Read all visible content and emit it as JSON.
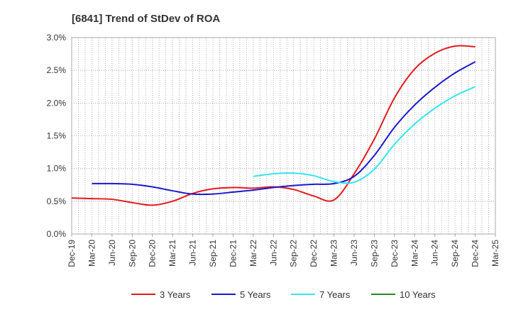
{
  "chart_data": {
    "type": "line",
    "title": "[6841]  Trend of StDev of ROA",
    "xlabel": "",
    "ylabel": "",
    "x_ticks": [
      "Dec-19",
      "Mar-20",
      "Jun-20",
      "Sep-20",
      "Dec-20",
      "Mar-21",
      "Jun-21",
      "Sep-21",
      "Dec-21",
      "Mar-22",
      "Jun-22",
      "Sep-22",
      "Dec-22",
      "Mar-23",
      "Jun-23",
      "Sep-23",
      "Dec-23",
      "Mar-24",
      "Jun-24",
      "Sep-24",
      "Dec-24",
      "Mar-25"
    ],
    "y_ticks": [
      "0.0%",
      "0.5%",
      "1.0%",
      "1.5%",
      "2.0%",
      "2.5%",
      "3.0%"
    ],
    "ylim": [
      0,
      3.0
    ],
    "grid": true,
    "legend_position": "bottom",
    "series": [
      {
        "name": "3 Years",
        "color": "#e31a1c",
        "x": [
          "Dec-19",
          "Mar-20",
          "Jun-20",
          "Sep-20",
          "Dec-20",
          "Mar-21",
          "Jun-21",
          "Sep-21",
          "Dec-21",
          "Mar-22",
          "Jun-22",
          "Sep-22",
          "Dec-22",
          "Mar-23",
          "Jun-23",
          "Sep-23",
          "Dec-23",
          "Mar-24",
          "Jun-24",
          "Sep-24",
          "Dec-24"
        ],
        "values": [
          0.55,
          0.54,
          0.53,
          0.48,
          0.44,
          0.5,
          0.62,
          0.69,
          0.71,
          0.7,
          0.72,
          0.68,
          0.58,
          0.52,
          0.92,
          1.45,
          2.08,
          2.52,
          2.76,
          2.87,
          2.86
        ]
      },
      {
        "name": "5 Years",
        "color": "#1a1acc",
        "x": [
          "Mar-20",
          "Jun-20",
          "Sep-20",
          "Dec-20",
          "Mar-21",
          "Jun-21",
          "Sep-21",
          "Dec-21",
          "Mar-22",
          "Jun-22",
          "Sep-22",
          "Dec-22",
          "Mar-23",
          "Jun-23",
          "Sep-23",
          "Dec-23",
          "Mar-24",
          "Jun-24",
          "Sep-24",
          "Dec-24"
        ],
        "values": [
          0.77,
          0.77,
          0.76,
          0.72,
          0.66,
          0.61,
          0.61,
          0.64,
          0.67,
          0.71,
          0.74,
          0.76,
          0.77,
          0.88,
          1.2,
          1.63,
          1.97,
          2.24,
          2.46,
          2.63
        ]
      },
      {
        "name": "7 Years",
        "color": "#33e6f0",
        "x": [
          "Mar-22",
          "Jun-22",
          "Sep-22",
          "Dec-22",
          "Mar-23",
          "Jun-23",
          "Sep-23",
          "Dec-23",
          "Mar-24",
          "Jun-24",
          "Sep-24",
          "Dec-24"
        ],
        "values": [
          0.88,
          0.92,
          0.93,
          0.89,
          0.8,
          0.79,
          0.99,
          1.37,
          1.68,
          1.92,
          2.11,
          2.25
        ]
      },
      {
        "name": "10 Years",
        "color": "#228b22",
        "x": [],
        "values": []
      }
    ]
  }
}
